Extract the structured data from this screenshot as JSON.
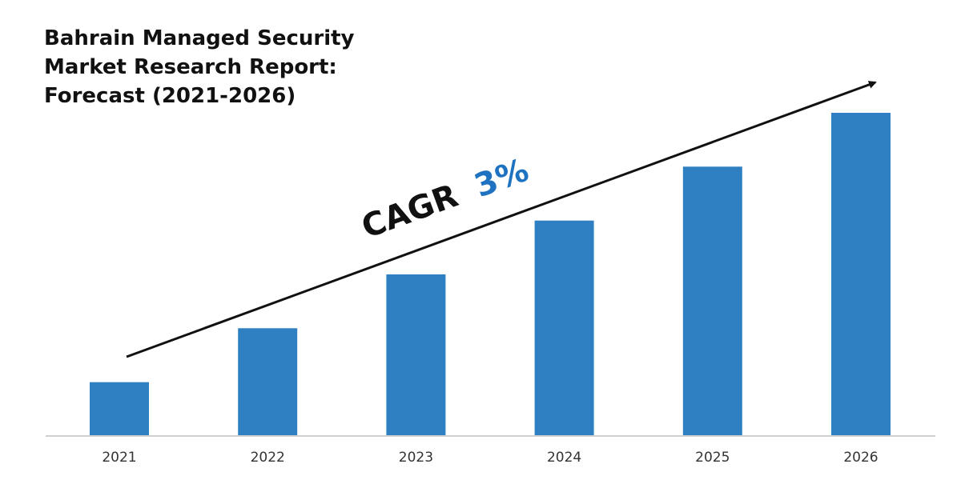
{
  "chart_data": {
    "type": "bar",
    "title": "Bahrain Managed Security Market Research Report: Forecast (2021-2026)",
    "categories": [
      "2021",
      "2022",
      "2023",
      "2024",
      "2025",
      "2026"
    ],
    "values": [
      1,
      2,
      3,
      4,
      5,
      6
    ],
    "ylim": [
      0,
      6
    ],
    "grid": false,
    "legend": "none",
    "annotation": {
      "label": "CAGR",
      "value": "3%"
    },
    "colors": {
      "bar": "#2f80c2",
      "accent": "#1f72c0",
      "arrow": "#111111",
      "axis": "#d0d0d0"
    }
  }
}
